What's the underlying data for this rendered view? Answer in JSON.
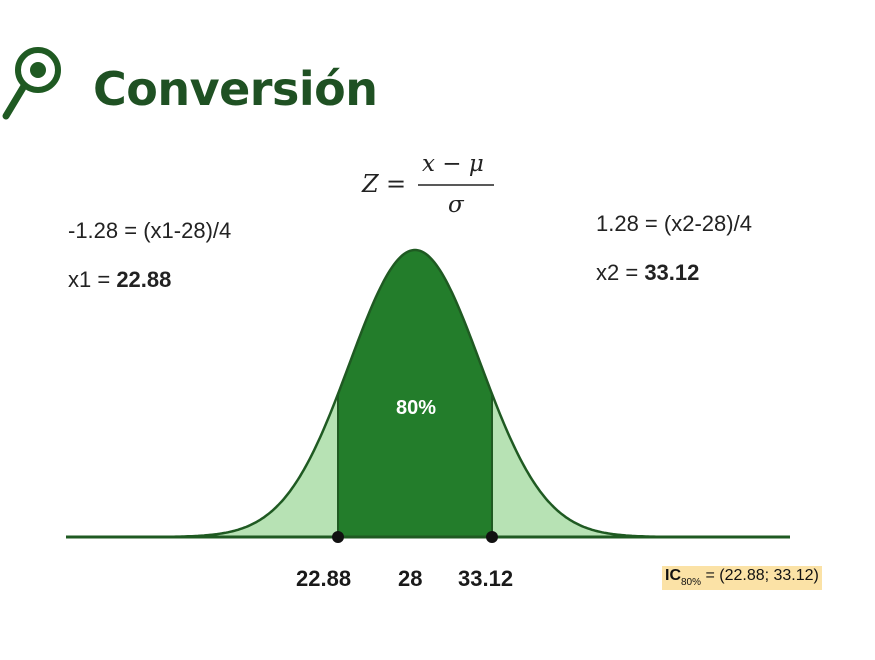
{
  "title": "Conversión",
  "formula": {
    "lhs": "Z",
    "equals": "=",
    "numerator": "x − μ",
    "denominator": "σ"
  },
  "left_calc": {
    "equation": "-1.28 = (x1-28)/4",
    "result_label": "x1 = ",
    "result_value": "22.88"
  },
  "right_calc": {
    "equation": "1.28 = (x2-28)/4",
    "result_label": "x2 = ",
    "result_value": "33.12"
  },
  "distribution": {
    "mean": 28,
    "sd": 4,
    "lower": 22.88,
    "upper": 33.12,
    "center_label": "80%",
    "colors": {
      "outer_fill": "#b7e2b4",
      "center_fill": "#237d2b",
      "outline": "#1f5a22"
    }
  },
  "ticks": {
    "low": "22.88",
    "mid": "28",
    "high": "33.12"
  },
  "ci": {
    "prefix": "IC",
    "sub": "80%",
    "text": " = (22.88; 33.12)",
    "highlight": "#fbe2a6"
  },
  "icons": {
    "search": "search-icon"
  }
}
